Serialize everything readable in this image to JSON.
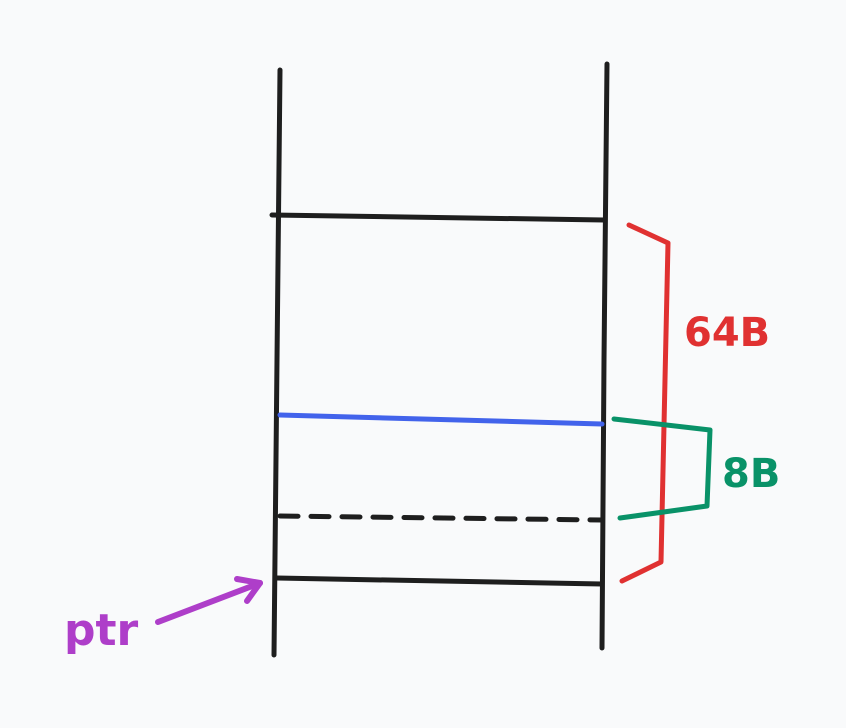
{
  "labels": {
    "size_64": "64B",
    "size_8": "8B",
    "pointer": "ptr"
  },
  "colors": {
    "background": "#f9fafb",
    "ink": "#1e1e1e",
    "red": "#e03131",
    "green": "#099268",
    "blue": "#4263eb",
    "purple": "#ae3ec9"
  }
}
